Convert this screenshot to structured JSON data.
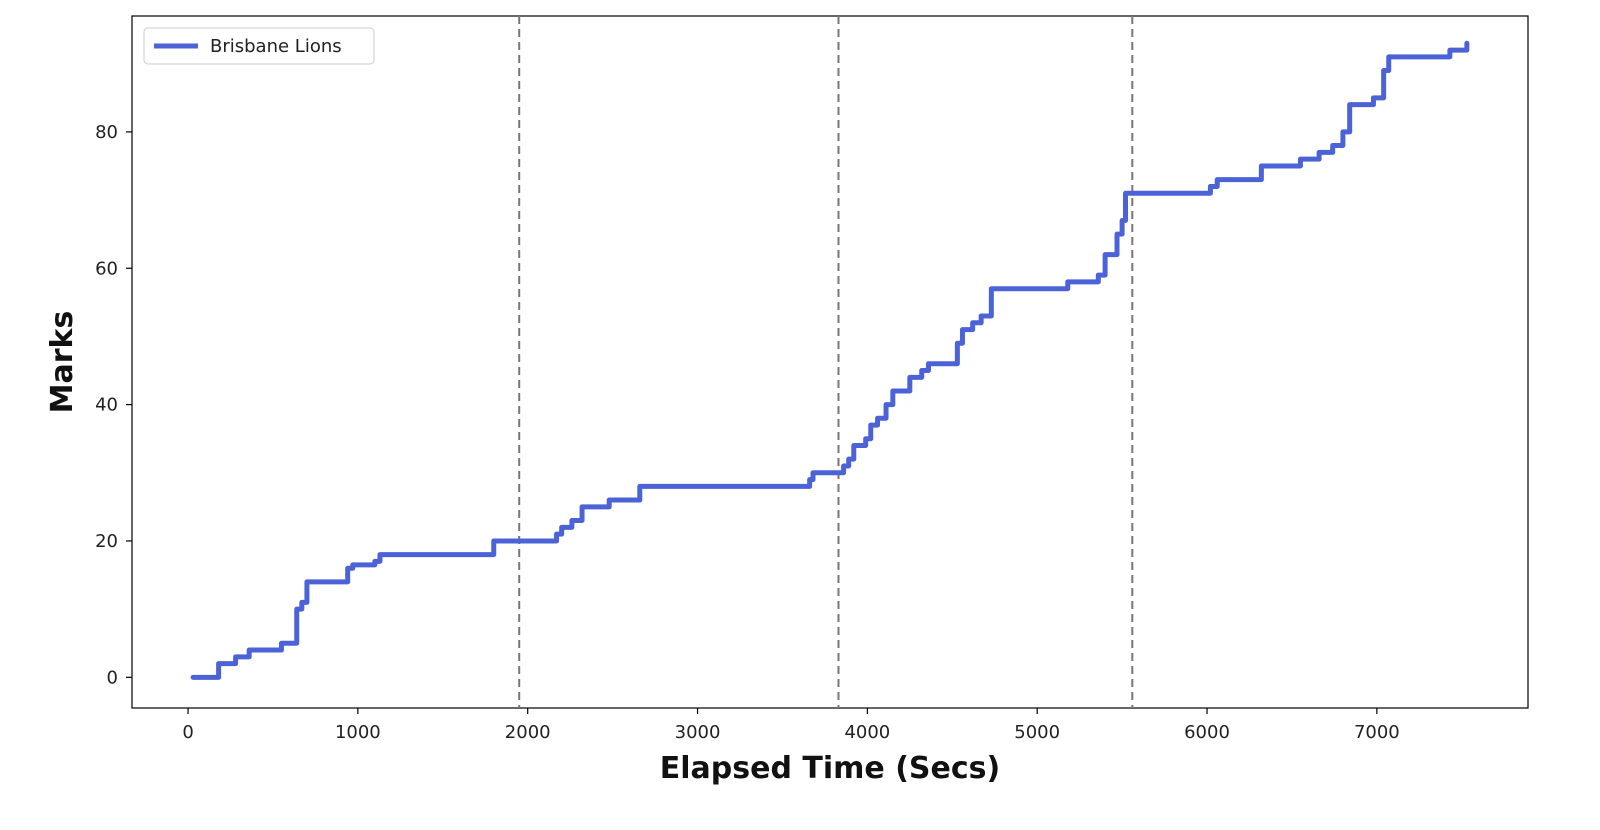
{
  "chart_data": {
    "type": "line",
    "title": "",
    "xlabel": "Elapsed Time (Secs)",
    "ylabel": "Marks",
    "xlim": [
      -330,
      7890
    ],
    "ylim": [
      -4.5,
      97
    ],
    "xticks": [
      0,
      1000,
      2000,
      3000,
      4000,
      5000,
      6000,
      7000
    ],
    "yticks": [
      0,
      20,
      40,
      60,
      80
    ],
    "grid": false,
    "legend": {
      "placement": "top-left",
      "entries": [
        "Brisbane Lions"
      ]
    },
    "vlines": [
      1950,
      3830,
      5560
    ],
    "series": [
      {
        "name": "Brisbane Lions",
        "color": "#4c63d8",
        "style": "step",
        "x": [
          30,
          180,
          200,
          280,
          360,
          550,
          640,
          670,
          700,
          720,
          940,
          970,
          1100,
          1130,
          1770,
          1800,
          2110,
          2170,
          2200,
          2260,
          2320,
          2360,
          2480,
          2510,
          2660,
          2690,
          3550,
          3660,
          3680,
          3810,
          3860,
          3890,
          3920,
          3990,
          4020,
          4060,
          4110,
          4150,
          4250,
          4320,
          4360,
          4530,
          4560,
          4620,
          4670,
          4730,
          5120,
          5180,
          5310,
          5360,
          5400,
          5430,
          5470,
          5500,
          5520,
          5930,
          6020,
          6060,
          6320,
          6380,
          6550,
          6640,
          6660,
          6740,
          6800,
          6840,
          6940,
          6980,
          7040,
          7070,
          7400,
          7430,
          7500,
          7530
        ],
        "y": [
          0,
          2,
          2,
          3,
          4,
          5,
          10,
          11,
          14,
          14,
          16,
          16.5,
          17,
          18,
          18,
          20,
          20,
          21,
          22,
          23,
          25,
          25,
          26,
          26,
          28,
          28,
          28,
          29,
          30,
          30,
          31,
          32,
          34,
          35,
          37,
          38,
          40,
          42,
          44,
          45,
          46,
          49,
          51,
          52,
          53,
          57,
          57,
          58,
          58,
          59,
          62,
          62,
          65,
          67,
          71,
          71,
          72,
          73,
          75,
          75,
          76,
          76,
          77,
          78,
          80,
          84,
          84,
          85,
          89,
          91,
          91,
          92,
          92,
          93
        ]
      }
    ]
  }
}
